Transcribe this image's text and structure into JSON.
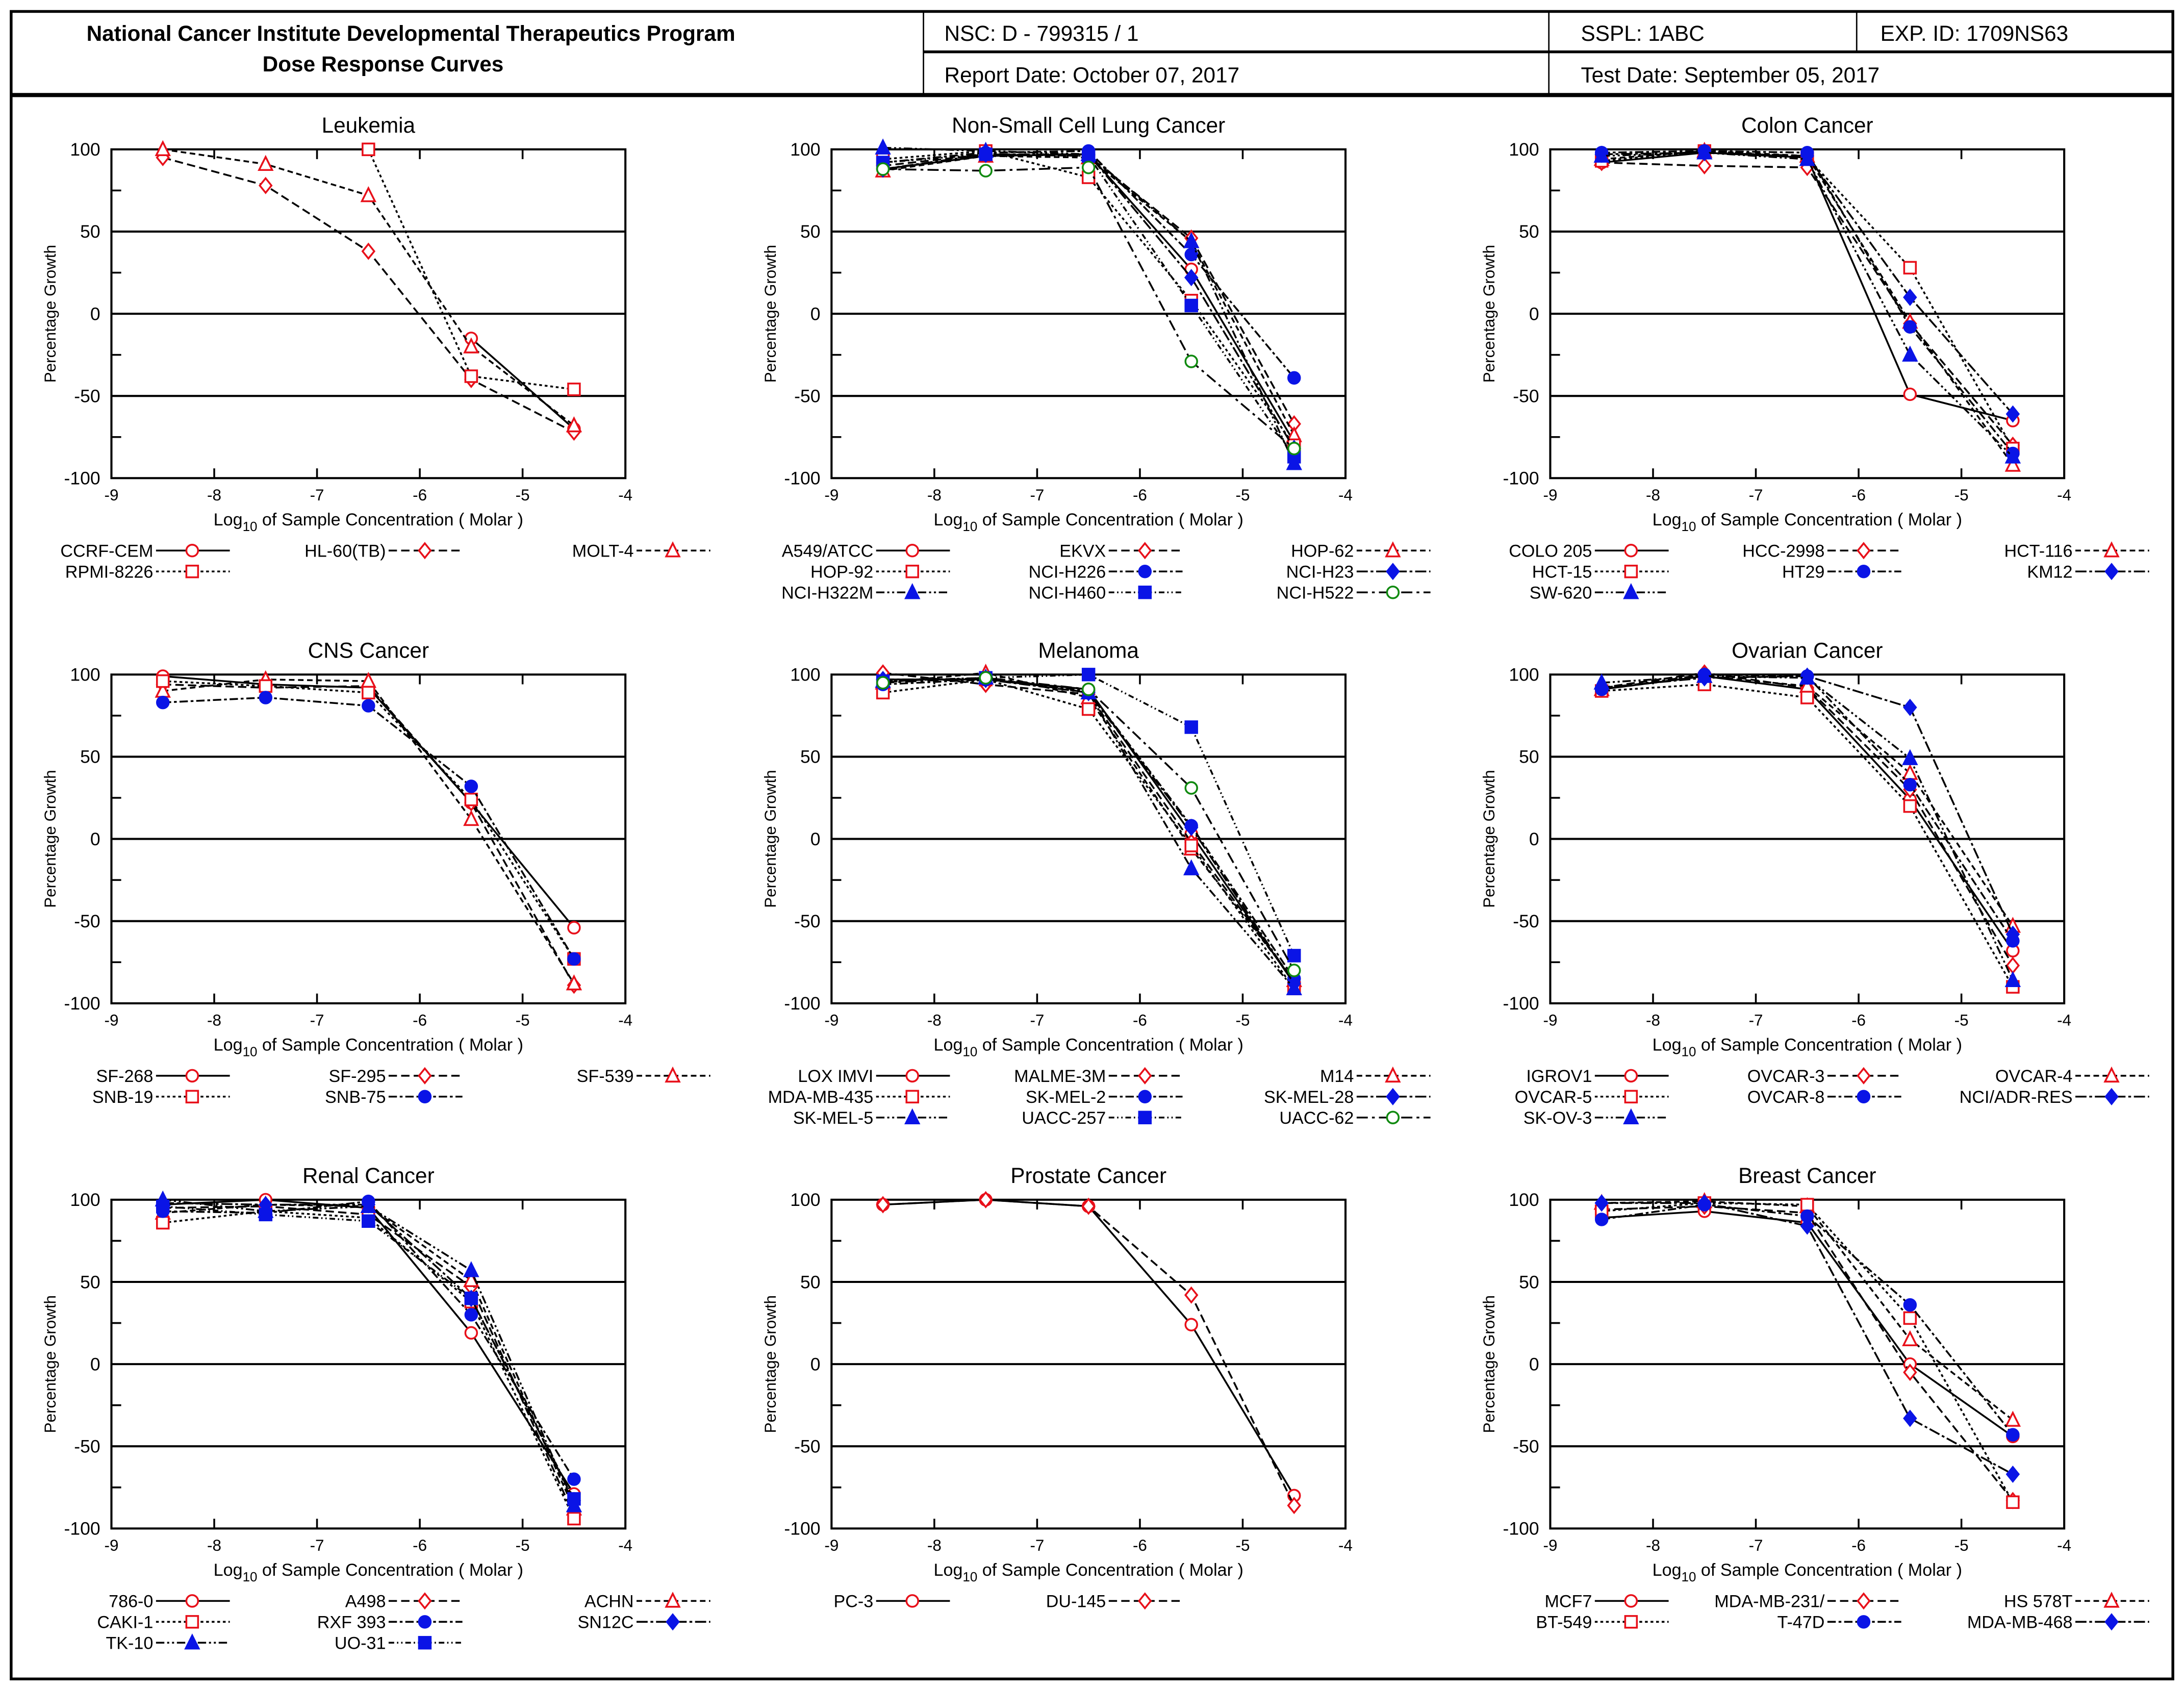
{
  "header": {
    "title_line1": "National Cancer Institute Developmental Therapeutics Program",
    "title_line2": "Dose Response Curves",
    "nsc": "NSC: D - 799315 / 1",
    "sspl": "SSPL: 1ABC",
    "exp_id": "EXP. ID: 1709NS63",
    "report_date": "Report Date: October 07, 2017",
    "test_date": "Test Date: September 05, 2017"
  },
  "colors": {
    "red": "#e8101a",
    "blue": "#0a14e6",
    "green": "#108a10"
  },
  "chart_data": [
    {
      "type": "line",
      "title": "Leukemia",
      "xlabel": "Log10 of Sample Concentration ( Molar )",
      "ylabel": "Percentage Growth",
      "xlim": [
        -9,
        -4
      ],
      "ylim": [
        -100,
        100
      ],
      "x": [
        -8.5,
        -7.5,
        -6.5,
        -5.5,
        -4.5
      ],
      "series": [
        {
          "name": "CCRF-CEM",
          "values": [
            null,
            null,
            null,
            -15,
            -70
          ]
        },
        {
          "name": "HL-60(TB)",
          "values": [
            95,
            78,
            38,
            -40,
            -72
          ]
        },
        {
          "name": "MOLT-4",
          "values": [
            100,
            91,
            72,
            -20,
            -68
          ]
        },
        {
          "name": "RPMI-8226",
          "values": [
            null,
            null,
            100,
            -38,
            -46
          ]
        }
      ]
    },
    {
      "type": "line",
      "title": "Non-Small Cell Lung Cancer",
      "xlabel": "Log10 of Sample Concentration ( Molar )",
      "ylabel": "Percentage Growth",
      "xlim": [
        -9,
        -4
      ],
      "ylim": [
        -100,
        100
      ],
      "x": [
        -8.5,
        -7.5,
        -6.5,
        -5.5,
        -4.5
      ],
      "series": [
        {
          "name": "A549/ATCC",
          "values": [
            88,
            96,
            97,
            27,
            -78
          ]
        },
        {
          "name": "EKVX",
          "values": [
            90,
            97,
            96,
            46,
            -67
          ]
        },
        {
          "name": "HOP-62",
          "values": [
            87,
            96,
            95,
            44,
            -74
          ]
        },
        {
          "name": "HOP-92",
          "values": [
            94,
            99,
            83,
            8,
            -80
          ]
        },
        {
          "name": "NCI-H226",
          "values": [
            92,
            98,
            99,
            36,
            -39
          ]
        },
        {
          "name": "NCI-H23",
          "values": [
            88,
            97,
            97,
            22,
            -82
          ]
        },
        {
          "name": "NCI-H322M",
          "values": [
            101,
            99,
            97,
            44,
            -91
          ]
        },
        {
          "name": "NCI-H460",
          "values": [
            92,
            97,
            96,
            5,
            -87
          ]
        },
        {
          "name": "NCI-H522",
          "values": [
            88,
            87,
            89,
            -29,
            -82
          ]
        }
      ]
    },
    {
      "type": "line",
      "title": "Colon Cancer",
      "xlabel": "Log10 of Sample Concentration ( Molar )",
      "ylabel": "Percentage Growth",
      "xlim": [
        -9,
        -4
      ],
      "ylim": [
        -100,
        100
      ],
      "x": [
        -8.5,
        -7.5,
        -6.5,
        -5.5,
        -4.5
      ],
      "series": [
        {
          "name": "COLO 205",
          "values": [
            92,
            98,
            95,
            -49,
            -65
          ]
        },
        {
          "name": "HCC-2998",
          "values": [
            92,
            90,
            89,
            -6,
            -80
          ]
        },
        {
          "name": "HCT-116",
          "values": [
            94,
            99,
            96,
            -5,
            -92
          ]
        },
        {
          "name": "HCT-15",
          "values": [
            93,
            99,
            95,
            28,
            -82
          ]
        },
        {
          "name": "HT29",
          "values": [
            98,
            99,
            98,
            -8,
            -85
          ]
        },
        {
          "name": "KM12",
          "values": [
            97,
            98,
            96,
            10,
            -61
          ]
        },
        {
          "name": "SW-620",
          "values": [
            96,
            98,
            94,
            -25,
            -87
          ]
        }
      ]
    },
    {
      "type": "line",
      "title": "CNS Cancer",
      "xlabel": "Log10 of Sample Concentration ( Molar )",
      "ylabel": "Percentage Growth",
      "xlim": [
        -9,
        -4
      ],
      "ylim": [
        -100,
        100
      ],
      "x": [
        -8.5,
        -7.5,
        -6.5,
        -5.5,
        -4.5
      ],
      "series": [
        {
          "name": "SF-268",
          "values": [
            99,
            94,
            92,
            22,
            -54
          ]
        },
        {
          "name": "SF-295",
          "values": [
            94,
            92,
            93,
            22,
            -89
          ]
        },
        {
          "name": "SF-539",
          "values": [
            90,
            97,
            96,
            12,
            -88
          ]
        },
        {
          "name": "SNB-19",
          "values": [
            96,
            93,
            89,
            24,
            -73
          ]
        },
        {
          "name": "SNB-75",
          "values": [
            83,
            86,
            81,
            32,
            -73
          ]
        }
      ]
    },
    {
      "type": "line",
      "title": "Melanoma",
      "xlabel": "Log10 of Sample Concentration ( Molar )",
      "ylabel": "Percentage Growth",
      "xlim": [
        -9,
        -4
      ],
      "ylim": [
        -100,
        100
      ],
      "x": [
        -8.5,
        -7.5,
        -6.5,
        -5.5,
        -4.5
      ],
      "series": [
        {
          "name": "LOX IMVI",
          "values": [
            97,
            97,
            91,
            3,
            -88
          ]
        },
        {
          "name": "MALME-3M",
          "values": [
            101,
            94,
            88,
            -2,
            -87
          ]
        },
        {
          "name": "M14",
          "values": [
            95,
            101,
            86,
            -6,
            -86
          ]
        },
        {
          "name": "MDA-MB-435",
          "values": [
            89,
            97,
            79,
            -4,
            -91
          ]
        },
        {
          "name": "SK-MEL-2",
          "values": [
            94,
            97,
            90,
            8,
            -85
          ]
        },
        {
          "name": "SK-MEL-28",
          "values": [
            97,
            97,
            89,
            7,
            -88
          ]
        },
        {
          "name": "SK-MEL-5",
          "values": [
            96,
            98,
            89,
            -18,
            -91
          ]
        },
        {
          "name": "UACC-257",
          "values": [
            96,
            98,
            100,
            68,
            -71
          ]
        },
        {
          "name": "UACC-62",
          "values": [
            95,
            98,
            91,
            31,
            -80
          ]
        }
      ]
    },
    {
      "type": "line",
      "title": "Ovarian Cancer",
      "xlabel": "Log10 of Sample Concentration ( Molar )",
      "ylabel": "Percentage Growth",
      "xlim": [
        -9,
        -4
      ],
      "ylim": [
        -100,
        100
      ],
      "x": [
        -8.5,
        -7.5,
        -6.5,
        -5.5,
        -4.5
      ],
      "series": [
        {
          "name": "IGROV1",
          "values": [
            91,
            99,
            91,
            24,
            -68
          ]
        },
        {
          "name": "OVCAR-3",
          "values": [
            92,
            101,
            92,
            30,
            -77
          ]
        },
        {
          "name": "OVCAR-4",
          "values": [
            91,
            99,
            93,
            40,
            -53
          ]
        },
        {
          "name": "OVCAR-5",
          "values": [
            90,
            94,
            86,
            20,
            -90
          ]
        },
        {
          "name": "OVCAR-8",
          "values": [
            91,
            100,
            99,
            33,
            -62
          ]
        },
        {
          "name": "NCI/ADR-RES",
          "values": [
            92,
            98,
            99,
            80,
            -58
          ]
        },
        {
          "name": "SK-OV-3",
          "values": [
            95,
            99,
            98,
            49,
            -86
          ]
        }
      ]
    },
    {
      "type": "line",
      "title": "Renal Cancer",
      "xlabel": "Log10 of Sample Concentration ( Molar )",
      "ylabel": "Percentage Growth",
      "xlim": [
        -9,
        -4
      ],
      "ylim": [
        -100,
        100
      ],
      "x": [
        -8.5,
        -7.5,
        -6.5,
        -5.5,
        -4.5
      ],
      "series": [
        {
          "name": "786-0",
          "values": [
            97,
            100,
            95,
            19,
            -79
          ]
        },
        {
          "name": "A498",
          "values": [
            95,
            96,
            91,
            47,
            -92
          ]
        },
        {
          "name": "ACHN",
          "values": [
            92,
            97,
            96,
            51,
            -88
          ]
        },
        {
          "name": "CAKI-1",
          "values": [
            86,
            93,
            89,
            38,
            -94
          ]
        },
        {
          "name": "RXF 393",
          "values": [
            93,
            92,
            99,
            30,
            -70
          ]
        },
        {
          "name": "SN12C",
          "values": [
            98,
            97,
            97,
            40,
            -83
          ]
        },
        {
          "name": "TK-10",
          "values": [
            100,
            93,
            96,
            57,
            -86
          ]
        },
        {
          "name": "UO-31",
          "values": [
            96,
            91,
            87,
            40,
            -82
          ]
        }
      ]
    },
    {
      "type": "line",
      "title": "Prostate Cancer",
      "xlabel": "Log10 of Sample Concentration ( Molar )",
      "ylabel": "Percentage Growth",
      "xlim": [
        -9,
        -4
      ],
      "ylim": [
        -100,
        100
      ],
      "x": [
        -8.5,
        -7.5,
        -6.5,
        -5.5,
        -4.5
      ],
      "series": [
        {
          "name": "PC-3",
          "values": [
            97,
            100,
            96,
            24,
            -80
          ]
        },
        {
          "name": "DU-145",
          "values": [
            97,
            100,
            96,
            42,
            -86
          ]
        }
      ]
    },
    {
      "type": "line",
      "title": "Breast Cancer",
      "xlabel": "Log10 of Sample Concentration ( Molar )",
      "ylabel": "Percentage Growth",
      "xlim": [
        -9,
        -4
      ],
      "ylim": [
        -100,
        100
      ],
      "x": [
        -8.5,
        -7.5,
        -6.5,
        -5.5,
        -4.5
      ],
      "series": [
        {
          "name": "MCF7",
          "values": [
            89,
            93,
            86,
            0,
            -44
          ]
        },
        {
          "name": "MDA-MB-231/",
          "values": [
            94,
            96,
            92,
            -5,
            -83
          ]
        },
        {
          "name": "HS 578T",
          "values": [
            98,
            99,
            96,
            15,
            -34
          ]
        },
        {
          "name": "BT-549",
          "values": [
            93,
            98,
            97,
            28,
            -84
          ]
        },
        {
          "name": "T-47D",
          "values": [
            88,
            97,
            90,
            36,
            -43
          ]
        },
        {
          "name": "MDA-MB-468",
          "values": [
            98,
            98,
            84,
            -33,
            -67
          ]
        }
      ]
    }
  ]
}
